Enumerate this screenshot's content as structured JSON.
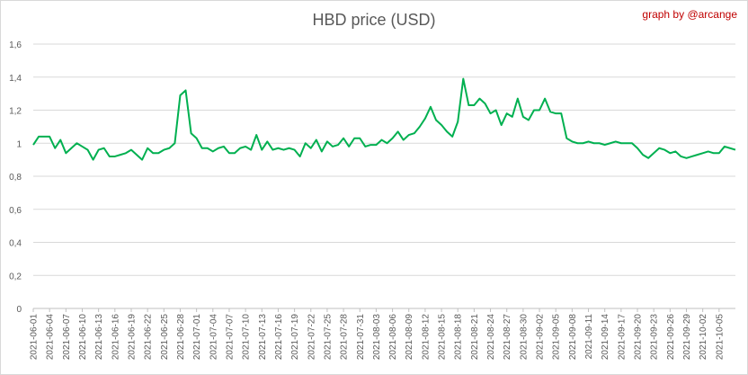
{
  "header": {
    "title": "HBD price (USD)",
    "credit": "graph by @arcange"
  },
  "chart_data": {
    "type": "line",
    "title": "HBD price (USD)",
    "xlabel": "",
    "ylabel": "",
    "ylim": [
      0,
      1.6
    ],
    "yticks": [
      "0",
      "0,2",
      "0,4",
      "0,6",
      "0,8",
      "1",
      "1,2",
      "1,4",
      "1,6"
    ],
    "grid": true,
    "line_color": "#00b050",
    "x_tick_labels": [
      "2021-06-01",
      "2021-06-04",
      "2021-06-07",
      "2021-06-10",
      "2021-06-13",
      "2021-06-16",
      "2021-06-19",
      "2021-06-22",
      "2021-06-25",
      "2021-06-28",
      "2021-07-01",
      "2021-07-04",
      "2021-07-07",
      "2021-07-10",
      "2021-07-13",
      "2021-07-16",
      "2021-07-19",
      "2021-07-22",
      "2021-07-25",
      "2021-07-28",
      "2021-07-31",
      "2021-08-03",
      "2021-08-06",
      "2021-08-09",
      "2021-08-12",
      "2021-08-15",
      "2021-08-18",
      "2021-08-21",
      "2021-08-24",
      "2021-08-27",
      "2021-08-30",
      "2021-09-02",
      "2021-09-05",
      "2021-09-08",
      "2021-09-11",
      "2021-09-14",
      "2021-09-17",
      "2021-09-20",
      "2021-09-23",
      "2021-09-26",
      "2021-09-29",
      "2021-10-02",
      "2021-10-05"
    ],
    "series": [
      {
        "start_date": "2021-06-01",
        "values": [
          0.99,
          1.04,
          1.04,
          1.04,
          0.97,
          1.02,
          0.94,
          0.97,
          1.0,
          0.98,
          0.96,
          0.9,
          0.96,
          0.97,
          0.92,
          0.92,
          0.93,
          0.94,
          0.96,
          0.93,
          0.9,
          0.97,
          0.94,
          0.94,
          0.96,
          0.97,
          1.0,
          1.29,
          1.32,
          1.06,
          1.03,
          0.97,
          0.97,
          0.95,
          0.97,
          0.98,
          0.94,
          0.94,
          0.97,
          0.98,
          0.96,
          1.05,
          0.96,
          1.01,
          0.96,
          0.97,
          0.96,
          0.97,
          0.96,
          0.92,
          1.0,
          0.97,
          1.02,
          0.95,
          1.01,
          0.98,
          0.99,
          1.03,
          0.98,
          1.03,
          1.03,
          0.98,
          0.99,
          0.99,
          1.02,
          1.0,
          1.03,
          1.07,
          1.02,
          1.05,
          1.06,
          1.1,
          1.15,
          1.22,
          1.14,
          1.11,
          1.07,
          1.04,
          1.13,
          1.39,
          1.23,
          1.23,
          1.27,
          1.24,
          1.18,
          1.2,
          1.11,
          1.18,
          1.16,
          1.27,
          1.16,
          1.14,
          1.2,
          1.2,
          1.27,
          1.19,
          1.18,
          1.18,
          1.03,
          1.01,
          1.0,
          1.0,
          1.01,
          1.0,
          1.0,
          0.99,
          1.0,
          1.01,
          1.0,
          1.0,
          1.0,
          0.97,
          0.93,
          0.91,
          0.94,
          0.97,
          0.96,
          0.94,
          0.95,
          0.92,
          0.91,
          0.92,
          0.93,
          0.94,
          0.95,
          0.94,
          0.94,
          0.98,
          0.97,
          0.96
        ]
      }
    ]
  }
}
